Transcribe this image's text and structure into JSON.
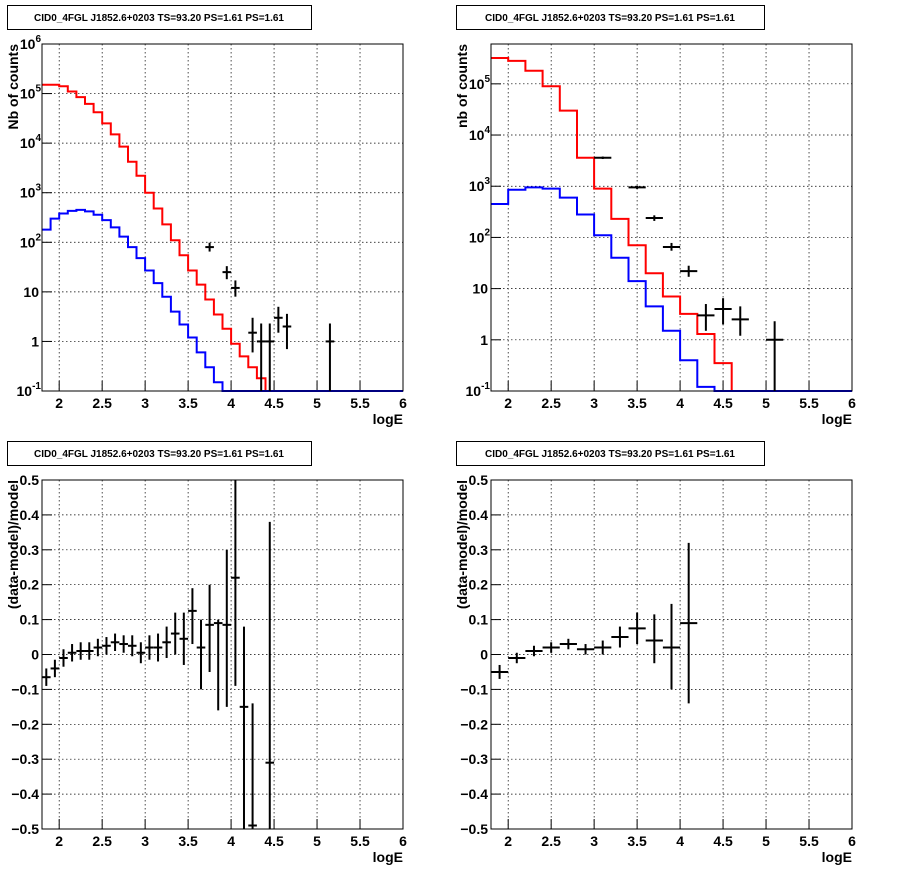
{
  "colors": {
    "model": "#ff0000",
    "background": "#0000ff",
    "data": "#000000"
  },
  "chart_data": [
    {
      "type": "line",
      "title": "CID0_4FGL J1852.6+0203 TS=93.20 PS=1.61 PS=1.61",
      "xlabel": "logE",
      "ylabel": "Nb of counts",
      "xlim": [
        1.8,
        6.0
      ],
      "ylim": [
        0.1,
        1000000
      ],
      "yscale": "log",
      "grid": true,
      "xticks": [
        2,
        2.5,
        3,
        3.5,
        4,
        4.5,
        5,
        5.5,
        6
      ],
      "xtick_labels": [
        "2",
        "2.5",
        "3",
        "3.5",
        "4",
        "4.5",
        "5",
        "5.5",
        "6"
      ],
      "yticks": [
        0.1,
        1,
        10,
        100,
        1000,
        10000,
        100000,
        1000000
      ],
      "ytick_labels": [
        {
          "base": "10",
          "exp": "-1"
        },
        {
          "base": "1",
          "exp": ""
        },
        {
          "base": "10",
          "exp": ""
        },
        {
          "base": "10",
          "exp": "2"
        },
        {
          "base": "10",
          "exp": "3"
        },
        {
          "base": "10",
          "exp": "4"
        },
        {
          "base": "10",
          "exp": "5"
        },
        {
          "base": "10",
          "exp": "6"
        }
      ],
      "bin_edges": [
        1.8,
        1.9,
        2.0,
        2.1,
        2.2,
        2.3,
        2.4,
        2.5,
        2.6,
        2.7,
        2.8,
        2.9,
        3.0,
        3.1,
        3.2,
        3.3,
        3.4,
        3.5,
        3.6,
        3.7,
        3.8,
        3.9,
        4.0,
        4.1,
        4.2,
        4.3,
        4.4,
        4.5,
        4.6,
        4.7,
        4.8,
        4.9,
        5.0,
        5.1,
        5.2,
        5.3,
        5.4,
        5.5,
        5.6,
        5.7,
        5.8,
        5.9,
        6.0
      ],
      "series": [
        {
          "name": "model",
          "color": "#ff0000",
          "values": [
            150000,
            150000,
            140000,
            110000,
            85000,
            62000,
            42000,
            25000,
            15000,
            8500,
            4200,
            2200,
            1000,
            480,
            230,
            110,
            55,
            27,
            14,
            7,
            3.5,
            1.8,
            0.9,
            0.5,
            0.3,
            0.18,
            0.1,
            0.1,
            0.1,
            0.1,
            0.1,
            0.1,
            0.1,
            0.1,
            0.1,
            0.1,
            0.1,
            0.1,
            0.1,
            0.1,
            0.1,
            0.1
          ]
        },
        {
          "name": "background",
          "color": "#0000ff",
          "values": [
            180,
            300,
            380,
            430,
            450,
            420,
            360,
            280,
            200,
            130,
            80,
            48,
            27,
            15,
            8,
            4,
            2.2,
            1.2,
            0.6,
            0.3,
            0.15,
            0.1,
            0.1,
            0.1,
            0.1,
            0.1,
            0.1,
            0.1,
            0.1,
            0.1,
            0.1,
            0.1,
            0.1,
            0.1,
            0.1,
            0.1,
            0.1,
            0.1,
            0.1,
            0.1,
            0.1,
            0.1
          ]
        }
      ],
      "points": [
        {
          "x": 3.75,
          "y": 80,
          "ylo": 65,
          "yhi": 98
        },
        {
          "x": 3.95,
          "y": 25,
          "ylo": 18,
          "yhi": 33
        },
        {
          "x": 4.05,
          "y": 12,
          "ylo": 8,
          "yhi": 17
        },
        {
          "x": 4.25,
          "y": 1.5,
          "ylo": 0.6,
          "yhi": 3
        },
        {
          "x": 4.35,
          "y": 1,
          "ylo": 0.1,
          "yhi": 2.3
        },
        {
          "x": 4.45,
          "y": 1,
          "ylo": 0.1,
          "yhi": 2.3
        },
        {
          "x": 4.55,
          "y": 3,
          "ylo": 1.5,
          "yhi": 5
        },
        {
          "x": 4.65,
          "y": 2,
          "ylo": 0.7,
          "yhi": 3.6
        },
        {
          "x": 5.15,
          "y": 1,
          "ylo": 0.1,
          "yhi": 2.3
        }
      ],
      "point_halfwidth": 0.05
    },
    {
      "type": "line",
      "title": "CID0_4FGL J1852.6+0203 TS=93.20 PS=1.61 PS=1.61",
      "xlabel": "logE",
      "ylabel": "nb of counts",
      "xlim": [
        1.8,
        6.0
      ],
      "ylim": [
        0.1,
        600000
      ],
      "yscale": "log",
      "grid": true,
      "xticks": [
        2,
        2.5,
        3,
        3.5,
        4,
        4.5,
        5,
        5.5,
        6
      ],
      "xtick_labels": [
        "2",
        "2.5",
        "3",
        "3.5",
        "4",
        "4.5",
        "5",
        "5.5",
        "6"
      ],
      "yticks": [
        0.1,
        1,
        10,
        100,
        1000,
        10000,
        100000
      ],
      "ytick_labels": [
        {
          "base": "10",
          "exp": "-1"
        },
        {
          "base": "1",
          "exp": ""
        },
        {
          "base": "10",
          "exp": ""
        },
        {
          "base": "10",
          "exp": "2"
        },
        {
          "base": "10",
          "exp": "3"
        },
        {
          "base": "10",
          "exp": "4"
        },
        {
          "base": "10",
          "exp": "5"
        }
      ],
      "bin_edges": [
        1.8,
        2.0,
        2.2,
        2.4,
        2.6,
        2.8,
        3.0,
        3.2,
        3.4,
        3.6,
        3.8,
        4.0,
        4.2,
        4.4,
        4.6,
        4.8,
        5.0,
        5.2,
        5.4,
        5.6,
        5.8,
        6.0
      ],
      "series": [
        {
          "name": "model",
          "color": "#ff0000",
          "values": [
            320000,
            280000,
            180000,
            90000,
            30000,
            3600,
            900,
            230,
            70,
            20,
            7,
            3.2,
            1.3,
            0.35,
            0.1,
            0.1,
            0.1,
            0.1,
            0.1,
            0.1,
            0.1
          ]
        },
        {
          "name": "background",
          "color": "#0000ff",
          "values": [
            450,
            850,
            950,
            900,
            600,
            280,
            110,
            40,
            14,
            4.5,
            1.5,
            0.4,
            0.12,
            0.1,
            0.1,
            0.1,
            0.1,
            0.1,
            0.1,
            0.1,
            0.1
          ]
        }
      ],
      "points": [
        {
          "x": 3.1,
          "y": 3600,
          "ylo": 3400,
          "yhi": 3800
        },
        {
          "x": 3.5,
          "y": 950,
          "ylo": 880,
          "yhi": 1020
        },
        {
          "x": 3.7,
          "y": 240,
          "ylo": 210,
          "yhi": 270
        },
        {
          "x": 3.9,
          "y": 65,
          "ylo": 55,
          "yhi": 78
        },
        {
          "x": 4.1,
          "y": 22,
          "ylo": 17,
          "yhi": 28
        },
        {
          "x": 4.3,
          "y": 3,
          "ylo": 1.5,
          "yhi": 5
        },
        {
          "x": 4.5,
          "y": 4,
          "ylo": 2,
          "yhi": 6.5
        },
        {
          "x": 4.7,
          "y": 2.5,
          "ylo": 1.2,
          "yhi": 4.5
        },
        {
          "x": 5.1,
          "y": 1,
          "ylo": 0.1,
          "yhi": 2.3
        }
      ],
      "point_halfwidth": 0.1
    },
    {
      "type": "scatter",
      "title": "CID0_4FGL J1852.6+0203 TS=93.20 PS=1.61 PS=1.61",
      "xlabel": "logE",
      "ylabel": "(data-model)/model",
      "xlim": [
        1.8,
        6.0
      ],
      "ylim": [
        -0.5,
        0.5
      ],
      "yscale": "linear",
      "grid": true,
      "xticks": [
        2,
        2.5,
        3,
        3.5,
        4,
        4.5,
        5,
        5.5,
        6
      ],
      "xtick_labels": [
        "2",
        "2.5",
        "3",
        "3.5",
        "4",
        "4.5",
        "5",
        "5.5",
        "6"
      ],
      "yticks": [
        -0.5,
        -0.4,
        -0.3,
        -0.2,
        -0.1,
        0,
        0.1,
        0.2,
        0.3,
        0.4,
        0.5
      ],
      "ytick_labels": [
        "−0.5",
        "−0.4",
        "−0.3",
        "−0.2",
        "−0.1",
        "0",
        "0.1",
        "0.2",
        "0.3",
        "0.4",
        "0.5"
      ],
      "point_halfwidth": 0.05,
      "points": [
        {
          "x": 1.85,
          "y": -0.065,
          "ylo": -0.09,
          "yhi": -0.04
        },
        {
          "x": 1.95,
          "y": -0.04,
          "ylo": -0.065,
          "yhi": -0.015
        },
        {
          "x": 2.05,
          "y": -0.01,
          "ylo": -0.035,
          "yhi": 0.015
        },
        {
          "x": 2.15,
          "y": 0.005,
          "ylo": -0.02,
          "yhi": 0.03
        },
        {
          "x": 2.25,
          "y": 0.01,
          "ylo": -0.015,
          "yhi": 0.035
        },
        {
          "x": 2.35,
          "y": 0.01,
          "ylo": -0.015,
          "yhi": 0.035
        },
        {
          "x": 2.45,
          "y": 0.02,
          "ylo": -0.005,
          "yhi": 0.045
        },
        {
          "x": 2.55,
          "y": 0.025,
          "ylo": 0.0,
          "yhi": 0.05
        },
        {
          "x": 2.65,
          "y": 0.035,
          "ylo": 0.01,
          "yhi": 0.06
        },
        {
          "x": 2.75,
          "y": 0.03,
          "ylo": 0.005,
          "yhi": 0.055
        },
        {
          "x": 2.85,
          "y": 0.025,
          "ylo": -0.005,
          "yhi": 0.055
        },
        {
          "x": 2.95,
          "y": 0.005,
          "ylo": -0.025,
          "yhi": 0.035
        },
        {
          "x": 3.05,
          "y": 0.02,
          "ylo": -0.015,
          "yhi": 0.055
        },
        {
          "x": 3.15,
          "y": 0.02,
          "ylo": -0.02,
          "yhi": 0.06
        },
        {
          "x": 3.25,
          "y": 0.035,
          "ylo": -0.01,
          "yhi": 0.08
        },
        {
          "x": 3.35,
          "y": 0.06,
          "ylo": 0.0,
          "yhi": 0.12
        },
        {
          "x": 3.45,
          "y": 0.045,
          "ylo": -0.03,
          "yhi": 0.12
        },
        {
          "x": 3.55,
          "y": 0.125,
          "ylo": 0.03,
          "yhi": 0.19
        },
        {
          "x": 3.65,
          "y": 0.02,
          "ylo": -0.1,
          "yhi": 0.1
        },
        {
          "x": 3.75,
          "y": 0.085,
          "ylo": -0.05,
          "yhi": 0.2
        },
        {
          "x": 3.85,
          "y": 0.09,
          "ylo": -0.16,
          "yhi": 0.1
        },
        {
          "x": 3.95,
          "y": 0.085,
          "ylo": -0.15,
          "yhi": 0.3
        },
        {
          "x": 4.05,
          "y": 0.22,
          "ylo": -0.09,
          "yhi": 0.5
        },
        {
          "x": 4.15,
          "y": -0.15,
          "ylo": -0.5,
          "yhi": 0.08
        },
        {
          "x": 4.25,
          "y": -0.49,
          "ylo": -0.5,
          "yhi": -0.14
        },
        {
          "x": 4.45,
          "y": -0.31,
          "ylo": -0.5,
          "yhi": 0.38
        }
      ],
      "data_labels": [
        {
          "x": 4.45,
          "y": -0.31,
          "text": "−"
        }
      ]
    },
    {
      "type": "scatter",
      "title": "CID0_4FGL J1852.6+0203 TS=93.20 PS=1.61 PS=1.61",
      "xlabel": "logE",
      "ylabel": "(data-model)/model",
      "xlim": [
        1.8,
        6.0
      ],
      "ylim": [
        -0.5,
        0.5
      ],
      "yscale": "linear",
      "grid": true,
      "xticks": [
        2,
        2.5,
        3,
        3.5,
        4,
        4.5,
        5,
        5.5,
        6
      ],
      "xtick_labels": [
        "2",
        "2.5",
        "3",
        "3.5",
        "4",
        "4.5",
        "5",
        "5.5",
        "6"
      ],
      "yticks": [
        -0.5,
        -0.4,
        -0.3,
        -0.2,
        -0.1,
        0,
        0.1,
        0.2,
        0.3,
        0.4,
        0.5
      ],
      "ytick_labels": [
        "−0.5",
        "−0.4",
        "−0.3",
        "−0.2",
        "−0.1",
        "0",
        "0.1",
        "0.2",
        "0.3",
        "0.4",
        "0.5"
      ],
      "point_halfwidth": 0.1,
      "points": [
        {
          "x": 1.9,
          "y": -0.05,
          "ylo": -0.07,
          "yhi": -0.03
        },
        {
          "x": 2.1,
          "y": -0.01,
          "ylo": -0.025,
          "yhi": 0.005
        },
        {
          "x": 2.3,
          "y": 0.01,
          "ylo": -0.005,
          "yhi": 0.025
        },
        {
          "x": 2.5,
          "y": 0.02,
          "ylo": 0.005,
          "yhi": 0.035
        },
        {
          "x": 2.7,
          "y": 0.03,
          "ylo": 0.015,
          "yhi": 0.045
        },
        {
          "x": 2.9,
          "y": 0.015,
          "ylo": 0.0,
          "yhi": 0.03
        },
        {
          "x": 3.1,
          "y": 0.02,
          "ylo": 0.0,
          "yhi": 0.04
        },
        {
          "x": 3.3,
          "y": 0.05,
          "ylo": 0.02,
          "yhi": 0.08
        },
        {
          "x": 3.5,
          "y": 0.075,
          "ylo": 0.03,
          "yhi": 0.12
        },
        {
          "x": 3.7,
          "y": 0.04,
          "ylo": -0.025,
          "yhi": 0.115
        },
        {
          "x": 3.9,
          "y": 0.02,
          "ylo": -0.1,
          "yhi": 0.145
        },
        {
          "x": 4.1,
          "y": 0.09,
          "ylo": -0.14,
          "yhi": 0.32
        }
      ]
    }
  ]
}
